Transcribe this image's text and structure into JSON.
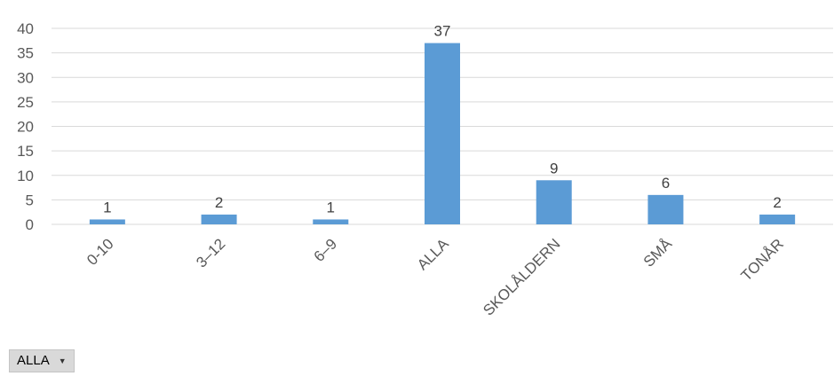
{
  "chart_data": {
    "type": "bar",
    "categories": [
      "0-10",
      "3–12",
      "6–9",
      "ALLA",
      "SKOLÅLDERN",
      "SMÅ",
      "TONÅR"
    ],
    "values": [
      1,
      2,
      1,
      37,
      9,
      6,
      2
    ],
    "title": "",
    "xlabel": "",
    "ylabel": "",
    "ylim": [
      0,
      40
    ],
    "yticks": [
      "0",
      "5",
      "10",
      "15",
      "20",
      "25",
      "30",
      "35",
      "40"
    ],
    "grid": true,
    "legend": "none",
    "bar_color": "#5b9bd5",
    "grid_color": "#d9d9d9"
  },
  "filter": {
    "selected": "ALLA",
    "icon": "chevron-down-icon"
  }
}
